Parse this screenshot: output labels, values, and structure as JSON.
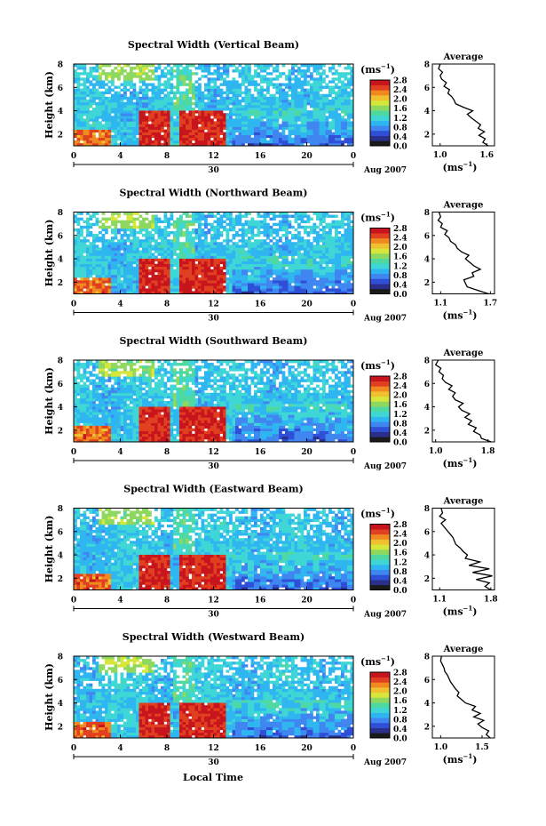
{
  "figure": {
    "xlabel": "Local Time"
  },
  "colorbar": {
    "unit_label": "(ms",
    "unit_exp": "−1",
    "ticks": [
      "2.8",
      "2.4",
      "2.0",
      "1.6",
      "1.2",
      "0.8",
      "0.4",
      "0.0"
    ],
    "range": [
      0.0,
      2.8
    ],
    "colors": [
      "#1a1a1a",
      "#2a2f8c",
      "#2f4fd6",
      "#3f86f0",
      "#2fb6f0",
      "#3fd6d6",
      "#4fd8a0",
      "#8fd860",
      "#d6e63a",
      "#f0c030",
      "#f08a20",
      "#e04020",
      "#c8141c"
    ]
  },
  "shared": {
    "x_ticks": [
      "0",
      "4",
      "8",
      "12",
      "16",
      "20",
      "0"
    ],
    "y_ticks": [
      "2",
      "4",
      "6",
      "8"
    ],
    "ylabel": "Height (km)",
    "date_day": "30",
    "date_month": "Aug 2007",
    "avg_title": "Average",
    "avg_ylim": [
      1,
      8
    ],
    "avg_xlabel": "(ms",
    "avg_xlabel_exp": "−1",
    "avg_xlabel_close": ")"
  },
  "chart_data": [
    {
      "type": "heatmap",
      "title": "Spectral Width (Vertical Beam)",
      "xlim": [
        0,
        24
      ],
      "ylim": [
        1,
        8
      ],
      "profile": {
        "xlim": [
          0.9,
          1.7
        ],
        "x_ticks": [
          "1.0",
          "1.6"
        ],
        "y": [
          1.0,
          1.3,
          1.6,
          1.9,
          2.2,
          2.5,
          2.8,
          3.1,
          3.4,
          3.7,
          4.0,
          4.3,
          4.6,
          4.9,
          5.2,
          5.5,
          5.8,
          6.1,
          6.4,
          6.7,
          7.0,
          7.3,
          7.6,
          8.0
        ],
        "x": [
          1.62,
          1.55,
          1.58,
          1.5,
          1.57,
          1.49,
          1.52,
          1.46,
          1.4,
          1.35,
          1.42,
          1.3,
          1.2,
          1.18,
          1.15,
          1.1,
          1.12,
          1.05,
          1.08,
          1.02,
          1.0,
          1.03,
          0.98,
          1.0
        ]
      }
    },
    {
      "type": "heatmap",
      "title": "Spectral Width (Northward Beam)",
      "xlim": [
        0,
        24
      ],
      "ylim": [
        1,
        8
      ],
      "profile": {
        "xlim": [
          1.0,
          1.75
        ],
        "x_ticks": [
          "1.1",
          "1.7"
        ],
        "y": [
          1.0,
          1.3,
          1.6,
          1.9,
          2.2,
          2.5,
          2.8,
          3.1,
          3.4,
          3.7,
          4.0,
          4.3,
          4.6,
          4.9,
          5.2,
          5.5,
          5.8,
          6.1,
          6.4,
          6.7,
          7.0,
          7.3,
          7.6,
          8.0
        ],
        "x": [
          1.68,
          1.55,
          1.42,
          1.4,
          1.38,
          1.5,
          1.48,
          1.58,
          1.5,
          1.45,
          1.4,
          1.44,
          1.35,
          1.3,
          1.28,
          1.22,
          1.2,
          1.15,
          1.18,
          1.1,
          1.12,
          1.07,
          1.1,
          1.08
        ]
      }
    },
    {
      "type": "heatmap",
      "title": "Spectral Width (Southward Beam)",
      "xlim": [
        0,
        24
      ],
      "ylim": [
        1,
        8
      ],
      "profile": {
        "xlim": [
          0.95,
          1.9
        ],
        "x_ticks": [
          "1.0",
          "1.8"
        ],
        "y": [
          1.0,
          1.3,
          1.6,
          1.9,
          2.2,
          2.5,
          2.8,
          3.1,
          3.4,
          3.7,
          4.0,
          4.3,
          4.6,
          4.9,
          5.2,
          5.5,
          5.8,
          6.1,
          6.4,
          6.7,
          7.0,
          7.3,
          7.6,
          8.0
        ],
        "x": [
          1.85,
          1.7,
          1.68,
          1.58,
          1.62,
          1.5,
          1.55,
          1.45,
          1.52,
          1.4,
          1.35,
          1.42,
          1.3,
          1.26,
          1.3,
          1.2,
          1.25,
          1.15,
          1.1,
          1.12,
          1.05,
          1.08,
          1.0,
          1.04
        ]
      }
    },
    {
      "type": "heatmap",
      "title": "Spectral Width (Eastward Beam)",
      "xlim": [
        0,
        24
      ],
      "ylim": [
        1,
        8
      ],
      "profile": {
        "xlim": [
          1.0,
          1.85
        ],
        "x_ticks": [
          "1.1",
          "1.8"
        ],
        "y": [
          1.0,
          1.3,
          1.6,
          1.9,
          2.2,
          2.5,
          2.8,
          3.1,
          3.4,
          3.7,
          4.0,
          4.3,
          4.6,
          4.9,
          5.2,
          5.5,
          5.8,
          6.1,
          6.4,
          6.7,
          7.0,
          7.3,
          7.6,
          8.0
        ],
        "x": [
          1.8,
          1.72,
          1.78,
          1.6,
          1.82,
          1.55,
          1.78,
          1.5,
          1.65,
          1.45,
          1.48,
          1.42,
          1.38,
          1.32,
          1.3,
          1.28,
          1.24,
          1.2,
          1.16,
          1.12,
          1.18,
          1.1,
          1.14,
          1.12
        ]
      }
    },
    {
      "type": "heatmap",
      "title": "Spectral Width (Westward Beam)",
      "xlim": [
        0,
        24
      ],
      "ylim": [
        1,
        8
      ],
      "profile": {
        "xlim": [
          0.9,
          1.65
        ],
        "x_ticks": [
          "1.0",
          "1.5"
        ],
        "y": [
          1.0,
          1.3,
          1.6,
          1.9,
          2.2,
          2.5,
          2.8,
          3.1,
          3.4,
          3.7,
          4.0,
          4.3,
          4.6,
          4.9,
          5.2,
          5.5,
          5.8,
          6.1,
          6.4,
          6.7,
          7.0,
          7.3,
          7.6,
          8.0
        ],
        "x": [
          1.6,
          1.55,
          1.58,
          1.5,
          1.45,
          1.52,
          1.4,
          1.48,
          1.38,
          1.42,
          1.3,
          1.25,
          1.2,
          1.22,
          1.18,
          1.15,
          1.12,
          1.1,
          1.08,
          1.05,
          1.04,
          1.02,
          1.0,
          1.01
        ]
      }
    }
  ]
}
